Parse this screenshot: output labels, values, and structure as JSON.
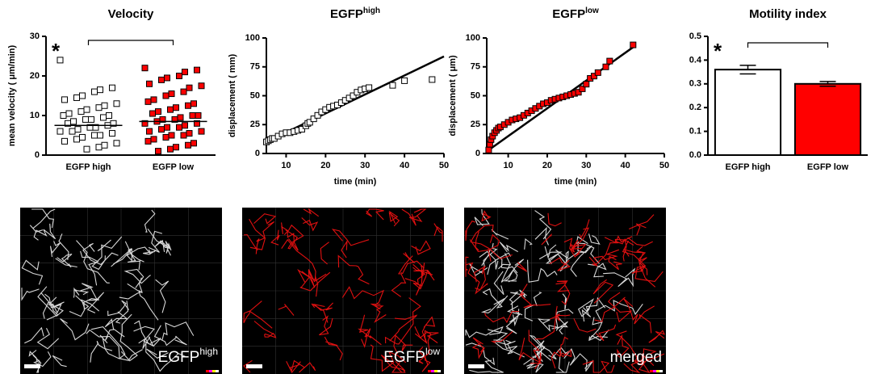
{
  "chart_data": [
    {
      "type": "dot_plot",
      "title": "Velocity",
      "ylabel": "mean velocity ( μm/min)",
      "annotation": "*",
      "categories": [
        "EGFP high",
        "EGFP low"
      ],
      "groups": [
        {
          "color": "#ffffff",
          "mean": 7.5,
          "values": [
            24,
            17,
            16.5,
            16,
            15,
            14.5,
            14,
            13,
            12.5,
            12,
            11.5,
            11,
            10.5,
            10,
            10,
            9.5,
            9,
            9,
            8.5,
            8,
            8,
            7.5,
            7,
            7,
            6.5,
            6,
            6,
            5.5,
            5,
            5,
            4.5,
            4,
            3.5,
            3,
            2.5,
            2,
            1.5
          ]
        },
        {
          "color": "#ff0000",
          "mean": 8.5,
          "values": [
            22,
            21.5,
            21,
            20,
            19.5,
            19,
            18,
            17.5,
            17,
            16,
            15.5,
            15,
            14,
            13.5,
            13,
            12.5,
            12,
            11.5,
            11,
            10.5,
            10,
            10,
            9.5,
            9,
            9,
            8.5,
            8,
            8,
            7.5,
            7,
            7,
            6.5,
            6,
            6,
            5.5,
            5,
            5,
            4.5,
            4,
            3.5,
            3,
            2.5,
            2,
            1.5,
            1
          ]
        }
      ],
      "ylim": [
        0,
        30
      ],
      "yticks": [
        0,
        10,
        20,
        30
      ]
    },
    {
      "type": "scatter",
      "title": "EGFP",
      "title_superscript": "high",
      "xlabel": "time (min)",
      "ylabel": "displacement ( mm)",
      "color": "#ffffff",
      "x": [
        5,
        5.5,
        6,
        6.5,
        7,
        8,
        9,
        10,
        11,
        12,
        13,
        14,
        15,
        15.5,
        16,
        17,
        18,
        19,
        20,
        21,
        22,
        23,
        24,
        25,
        26,
        27,
        28,
        29,
        30,
        31,
        37,
        40,
        47
      ],
      "y": [
        10,
        11,
        12,
        13,
        13,
        15,
        17,
        18,
        18,
        19,
        20,
        21,
        24,
        26,
        27,
        30,
        33,
        36,
        38,
        40,
        41,
        42,
        44,
        46,
        48,
        50,
        53,
        55,
        56,
        57,
        59,
        63,
        64
      ],
      "fit": {
        "x": [
          5,
          50
        ],
        "y": [
          10,
          84
        ]
      },
      "xlim": [
        5,
        50
      ],
      "xticks": [
        10,
        20,
        30,
        40,
        50
      ],
      "ylim": [
        0,
        100
      ],
      "yticks": [
        0,
        25,
        50,
        75,
        100
      ]
    },
    {
      "type": "scatter",
      "title": "EGFP",
      "title_superscript": "low",
      "xlabel": "time (min)",
      "ylabel": "displacement ( μm)",
      "color": "#ff0000",
      "x": [
        5,
        5.3,
        5.6,
        6,
        6.5,
        7,
        7.5,
        8,
        9,
        10,
        11,
        12,
        13,
        14,
        15,
        16,
        17,
        18,
        19,
        20,
        21,
        22,
        23,
        24,
        25,
        26,
        27,
        28,
        29,
        30,
        31,
        32,
        33,
        35,
        36,
        42
      ],
      "y": [
        3,
        8,
        12,
        15,
        18,
        20,
        22,
        23,
        25,
        27,
        29,
        30,
        31,
        33,
        35,
        37,
        39,
        41,
        43,
        44,
        46,
        47,
        48,
        49,
        50,
        51,
        52,
        53,
        56,
        60,
        65,
        67,
        70,
        75,
        80,
        94
      ],
      "fit": {
        "x": [
          5,
          42
        ],
        "y": [
          3,
          92
        ]
      },
      "xlim": [
        4.5,
        50
      ],
      "xticks": [
        10,
        20,
        30,
        40,
        50
      ],
      "ylim": [
        0,
        100
      ],
      "yticks": [
        0,
        25,
        50,
        75,
        100
      ]
    },
    {
      "type": "bar",
      "title": "Motility index",
      "annotation": "*",
      "categories": [
        "EGFP high",
        "EGFP low"
      ],
      "values": [
        0.36,
        0.3
      ],
      "errors": [
        0.018,
        0.01
      ],
      "colors": [
        "#ffffff",
        "#ff0000"
      ],
      "ylim": [
        0,
        0.5
      ],
      "yticks": [
        {
          "value": 0,
          "label": "0.0"
        },
        0.1,
        0.2,
        0.3,
        0.4,
        0.5
      ]
    }
  ],
  "images": [
    {
      "label": "EGFP",
      "label_superscript": "high"
    },
    {
      "label": "EGFP",
      "label_superscript": "low"
    },
    {
      "label": "merged"
    }
  ]
}
